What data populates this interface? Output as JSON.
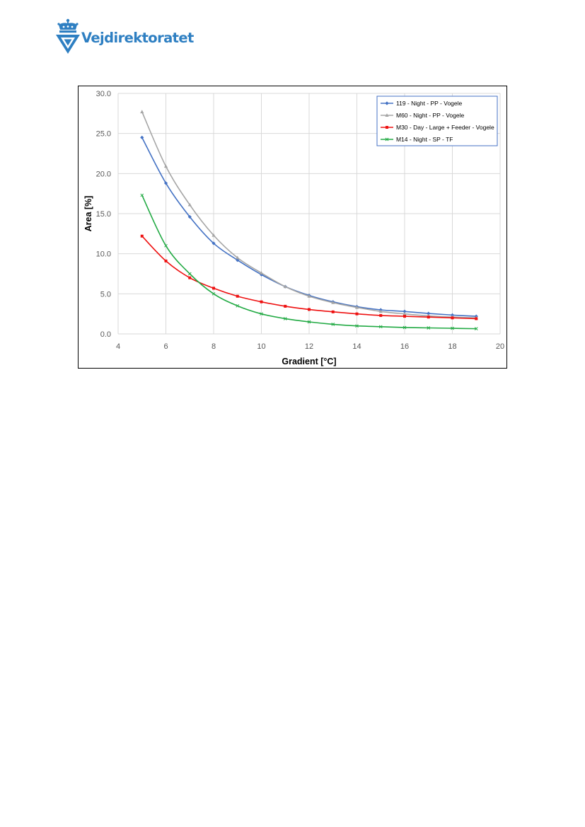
{
  "header": {
    "logo_text": "Vejdirektoratet",
    "colors": {
      "brand": "#2e7fc2"
    },
    "icon": "crown-shield-logo-icon"
  },
  "chart_data": {
    "type": "line",
    "xlabel": "Gradient [°C]",
    "ylabel": "Area [%]",
    "xlim": [
      4,
      20
    ],
    "ylim": [
      0,
      30
    ],
    "xticks": [
      "4",
      "6",
      "8",
      "10",
      "12",
      "14",
      "16",
      "18",
      "20"
    ],
    "yticks": [
      "0.0",
      "5.0",
      "10.0",
      "15.0",
      "20.0",
      "25.0",
      "30.0"
    ],
    "grid": true,
    "legend_position": "top-right",
    "x": [
      5,
      6,
      7,
      8,
      9,
      10,
      11,
      12,
      13,
      14,
      15,
      16,
      17,
      18,
      19
    ],
    "series": [
      {
        "name": "119 - Night - PP - Vogele",
        "color": "#4472c4",
        "marker": "diamond",
        "values": [
          24.5,
          18.8,
          14.6,
          11.3,
          9.2,
          7.4,
          5.9,
          4.8,
          4.0,
          3.4,
          3.0,
          2.8,
          2.55,
          2.35,
          2.2
        ]
      },
      {
        "name": "M60 - Night - PP - Vogele",
        "color": "#a5a5a5",
        "marker": "triangle",
        "values": [
          27.7,
          20.9,
          16.1,
          12.3,
          9.5,
          7.6,
          5.9,
          4.7,
          3.9,
          3.3,
          2.8,
          2.5,
          2.25,
          2.1,
          2.0
        ]
      },
      {
        "name": "M30 - Day - Large + Feeder - Vogele",
        "color": "#ee1111",
        "marker": "square",
        "values": [
          12.2,
          9.1,
          7.0,
          5.7,
          4.7,
          4.0,
          3.45,
          3.05,
          2.75,
          2.5,
          2.3,
          2.2,
          2.1,
          2.0,
          1.9
        ]
      },
      {
        "name": "M14 - Night - SP - TF",
        "color": "#22aa44",
        "marker": "x",
        "values": [
          17.3,
          11.0,
          7.5,
          5.0,
          3.5,
          2.5,
          1.9,
          1.5,
          1.2,
          1.0,
          0.9,
          0.8,
          0.75,
          0.7,
          0.65
        ]
      }
    ]
  }
}
